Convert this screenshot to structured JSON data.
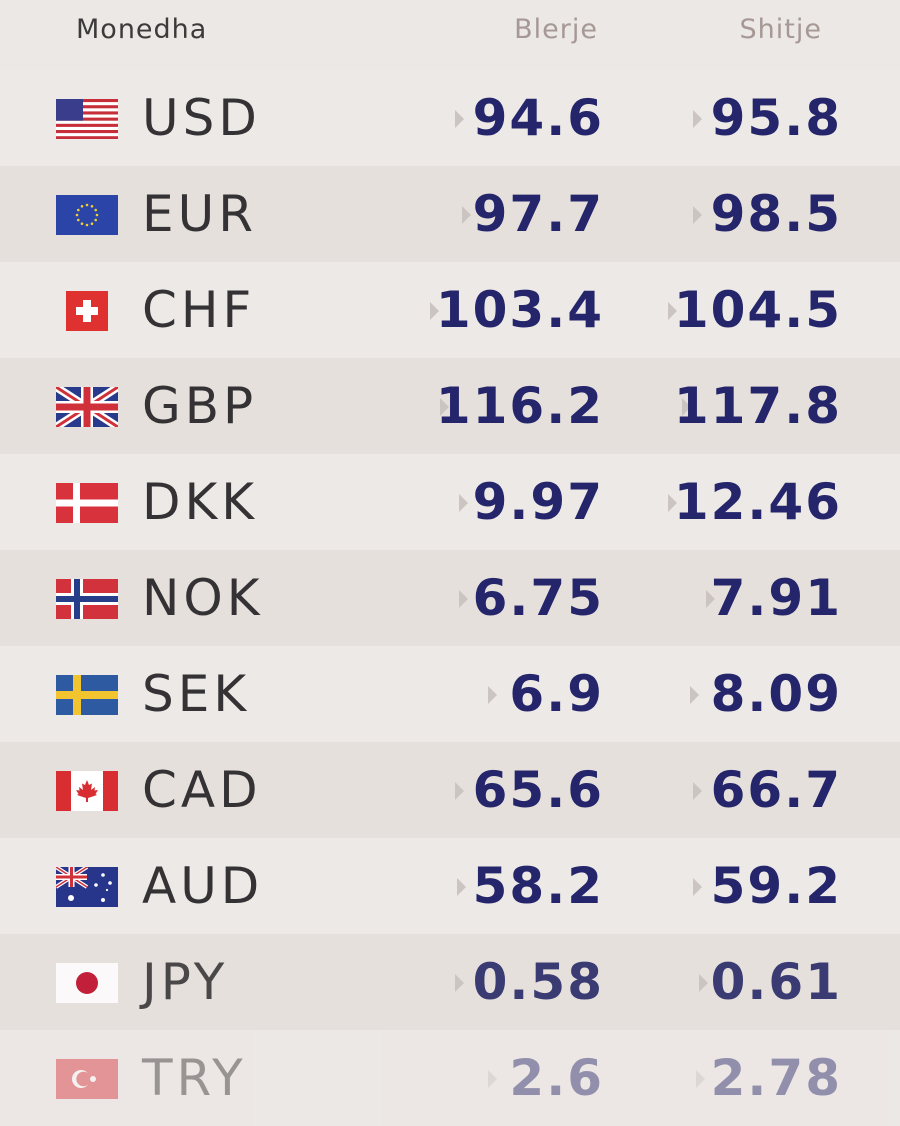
{
  "header": {
    "currency": "Monedha",
    "buy": "Blerje",
    "sell": "Shitje"
  },
  "rates": [
    {
      "code": "USD",
      "buy": "94.6",
      "sell": "95.8",
      "flag": "us-flag"
    },
    {
      "code": "EUR",
      "buy": "97.7",
      "sell": "98.5",
      "flag": "eu-flag"
    },
    {
      "code": "CHF",
      "buy": "103.4",
      "sell": "104.5",
      "flag": "swiss-flag"
    },
    {
      "code": "GBP",
      "buy": "116.2",
      "sell": "117.8",
      "flag": "uk-flag"
    },
    {
      "code": "DKK",
      "buy": "9.97",
      "sell": "12.46",
      "flag": "denmark-flag"
    },
    {
      "code": "NOK",
      "buy": "6.75",
      "sell": "7.91",
      "flag": "norway-flag"
    },
    {
      "code": "SEK",
      "buy": "6.9",
      "sell": "8.09",
      "flag": "sweden-flag"
    },
    {
      "code": "CAD",
      "buy": "65.6",
      "sell": "66.7",
      "flag": "canada-flag"
    },
    {
      "code": "AUD",
      "buy": "58.2",
      "sell": "59.2",
      "flag": "australia-flag"
    },
    {
      "code": "JPY",
      "buy": "0.58",
      "sell": "0.61",
      "flag": "japan-flag"
    },
    {
      "code": "TRY",
      "buy": "2.6",
      "sell": "2.78",
      "flag": "turkey-flag"
    }
  ],
  "colors": {
    "value": "#24256a",
    "code": "#343234",
    "header_muted": "#a69894",
    "background": "#ece7e4"
  }
}
